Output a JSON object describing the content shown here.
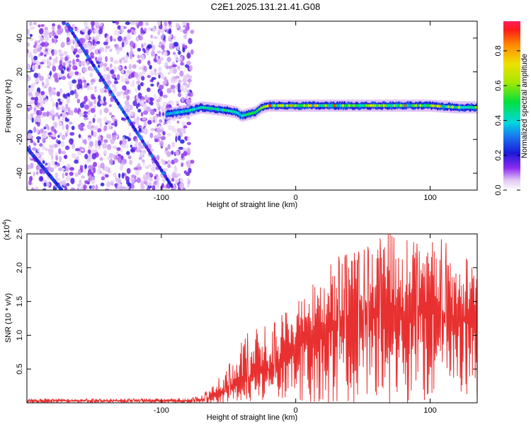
{
  "title": "C2E1.2025.131.21.41.G08",
  "chart_data": [
    {
      "type": "heatmap",
      "xlabel": "Height of straight line (km)",
      "ylabel": "Frequency (Hz)",
      "xlim": [
        -200,
        135
      ],
      "ylim": [
        -50,
        50
      ],
      "xticks": [
        -100,
        0,
        100
      ],
      "yticks": [
        -40,
        -20,
        0,
        20,
        40
      ],
      "colorbar": {
        "label": "Normalized spectral amplitude",
        "range": [
          0,
          0.97
        ],
        "ticks": [
          "0.0",
          "0.2",
          "0.4",
          "0.6",
          "0.8"
        ],
        "tick_values": [
          0,
          0.2,
          0.4,
          0.6,
          0.8
        ]
      },
      "features": {
        "noise_region_x": [
          -200,
          -77
        ],
        "diagonal_line_1": {
          "x": [
            -200,
            -174
          ],
          "y": [
            -25,
            -50
          ],
          "peak_amplitude": 0.3
        },
        "diagonal_line_2": {
          "x": [
            -170,
            -92
          ],
          "y": [
            48,
            -48
          ],
          "peak_amplitude": 0.35
        },
        "tone_band": {
          "x": [
            -96,
            -80,
            -70,
            -60,
            -50,
            -44,
            -40,
            -35,
            -30,
            -25,
            -20,
            -10,
            0,
            20,
            40,
            60,
            80,
            100,
            120,
            135
          ],
          "y": [
            -5,
            -3,
            -1,
            -2,
            -3,
            -4,
            -6,
            -5,
            -4,
            -1,
            0,
            0,
            0,
            0,
            0,
            0,
            0,
            0,
            -1,
            -1
          ],
          "max_amplitude": 0.97
        }
      }
    },
    {
      "type": "line",
      "xlabel": "Height of straight line (km)",
      "ylabel": "SNR (10 * v/v)",
      "multiplier": "(x10^4)",
      "multiplier_base": "(x10",
      "multiplier_exp": "4",
      "multiplier_close": ")",
      "xlim": [
        -200,
        135
      ],
      "ylim": [
        0,
        25000
      ],
      "xticks": [
        -100,
        0,
        100
      ],
      "yticks": [
        5000,
        10000,
        15000,
        20000,
        25000
      ],
      "ytick_labels": [
        "0.5",
        "1.0",
        "1.5",
        "2.0",
        "2.5"
      ],
      "color": "#e83030",
      "series": [
        {
          "x": [
            -200,
            -150,
            -100,
            -80,
            -70,
            -60,
            -50,
            -40,
            -30,
            -20,
            -10,
            0,
            10,
            20,
            30,
            40,
            50,
            60,
            70,
            80,
            90,
            100,
            110,
            120,
            135
          ],
          "y_low": [
            0,
            0,
            0,
            0,
            0,
            0,
            0,
            0,
            0,
            0,
            0,
            0,
            0,
            0,
            0,
            0,
            0,
            0,
            0,
            0,
            0,
            0,
            0,
            0,
            0
          ],
          "y_mid": [
            300,
            300,
            300,
            300,
            400,
            1000,
            2000,
            3000,
            4000,
            5000,
            6000,
            8000,
            10000,
            11000,
            12000,
            13000,
            13500,
            14000,
            14000,
            13500,
            13000,
            13500,
            13000,
            12500,
            12000
          ],
          "y_high": [
            600,
            600,
            600,
            700,
            1000,
            3000,
            5500,
            9000,
            12000,
            11000,
            13000,
            15000,
            17000,
            20000,
            21500,
            22000,
            22500,
            24000,
            25000,
            24500,
            23500,
            25000,
            24000,
            22000,
            20500
          ]
        }
      ]
    }
  ]
}
